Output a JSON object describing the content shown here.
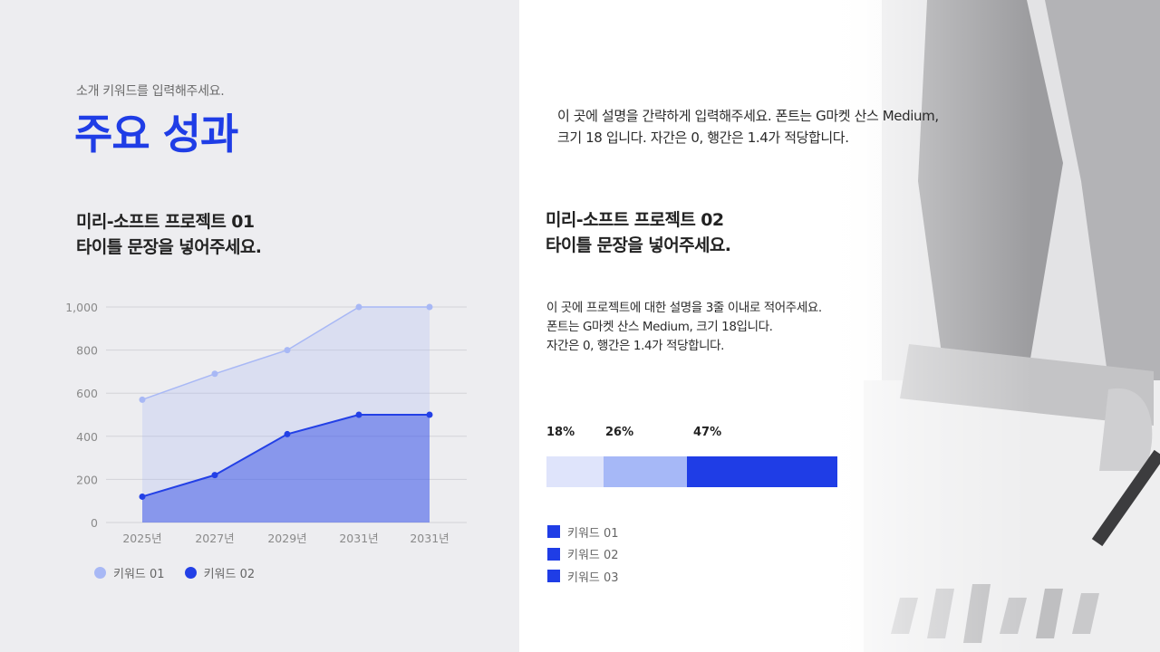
{
  "header": {
    "subtitle": "소개 키워드를 입력해주세요.",
    "title": "주요 성과"
  },
  "intro": {
    "lines": [
      "이 곳에 설명을 간략하게 입력해주세요. 폰트는 G마켓 산스 Medium,",
      "크기 18 입니다. 자간은 0, 행간은 1.4가 적당합니다."
    ]
  },
  "project1": {
    "title_lines": [
      "미리-소프트 프로젝트 01",
      "타이틀 문장을 넣어주세요."
    ]
  },
  "project2": {
    "title_lines": [
      "미리-소프트 프로젝트 02",
      "타이틀 문장을 넣어주세요."
    ],
    "desc_lines": [
      "이 곳에 프로젝트에 대한 설명을 3줄 이내로 적어주세요.",
      "폰트는 G마켓 산스 Medium, 크기 18입니다.",
      "자간은 0, 행간은 1.4가 적당합니다."
    ]
  },
  "chart_data": [
    {
      "type": "area",
      "x": [
        "2025년",
        "2027년",
        "2029년",
        "2031년",
        "2031년"
      ],
      "yticks": [
        "0",
        "200",
        "400",
        "600",
        "800",
        "1,000"
      ],
      "ylim": [
        0,
        1000
      ],
      "grid": true,
      "legend_position": "bottom-left",
      "series": [
        {
          "name": "키워드 01",
          "values": [
            570,
            690,
            800,
            1000,
            1000
          ],
          "color": "#a8b8f5"
        },
        {
          "name": "키워드 02",
          "values": [
            120,
            220,
            410,
            500,
            500
          ],
          "color": "#2340e6"
        }
      ]
    },
    {
      "type": "bar",
      "orientation": "horizontal-stacked",
      "categories": [
        "키워드 01",
        "키워드 02",
        "키워드 03"
      ],
      "values": [
        18,
        26,
        47
      ],
      "labels": [
        "18%",
        "26%",
        "47%"
      ],
      "colors": [
        "#dfe4fb",
        "#a6b8f7",
        "#1f3de6"
      ]
    }
  ],
  "colors": {
    "accent": "#1f3de6",
    "left_background": "#ededf0"
  }
}
